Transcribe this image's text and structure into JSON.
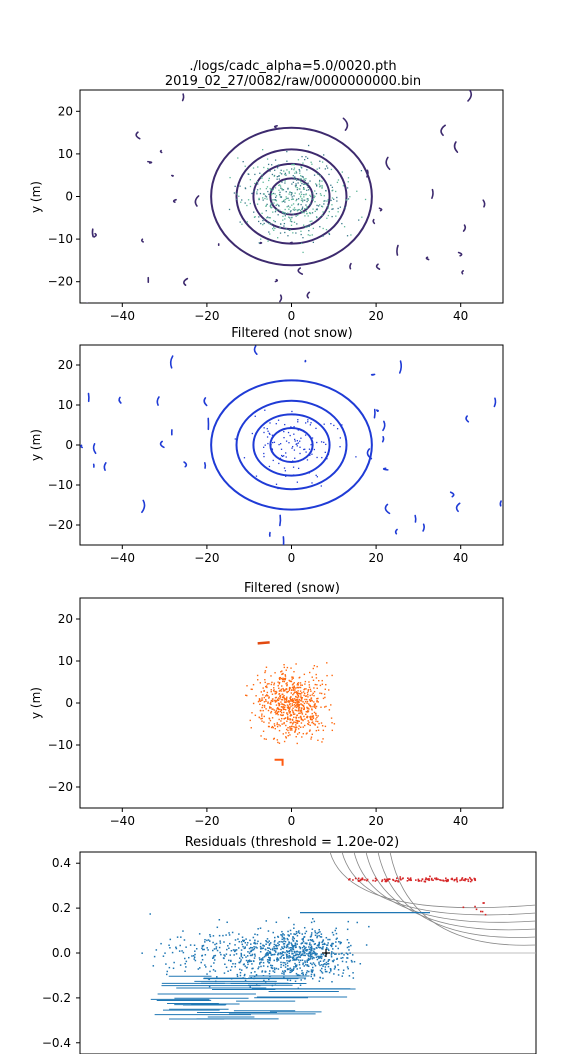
{
  "figure": {
    "title_line1": "./logs/cadc_alpha=5.0/0020.pth",
    "title_line2": "2019_02_27/0082/raw/0000000000.bin"
  },
  "chart_data": [
    {
      "type": "scatter",
      "title": "",
      "xlabel": "",
      "ylabel": "y (m)",
      "xlim": [
        -50,
        50
      ],
      "ylim": [
        -25,
        25
      ],
      "xticks": [
        "−40",
        "−20",
        "0",
        "20",
        "40"
      ],
      "yticks": [
        "20",
        "10",
        "0",
        "−10",
        "−20"
      ],
      "color_map": "viridis-like point colors",
      "rings": [
        5,
        9,
        13,
        19
      ],
      "series_color": "#3d2a6e"
    },
    {
      "type": "scatter",
      "title": "Filtered (not snow)",
      "xlabel": "",
      "ylabel": "y (m)",
      "xlim": [
        -50,
        50
      ],
      "ylim": [
        -25,
        25
      ],
      "xticks": [
        "−40",
        "−20",
        "0",
        "20",
        "40"
      ],
      "yticks": [
        "20",
        "10",
        "0",
        "−10",
        "−20"
      ],
      "rings": [
        5,
        9,
        13,
        19
      ],
      "series_color": "#1f3bd6"
    },
    {
      "type": "scatter",
      "title": "Filtered (snow)",
      "xlabel": "",
      "ylabel": "y (m)",
      "xlim": [
        -50,
        50
      ],
      "ylim": [
        -25,
        25
      ],
      "xticks": [
        "−40",
        "−20",
        "0",
        "20",
        "40"
      ],
      "yticks": [
        "20",
        "10",
        "0",
        "−10",
        "−20"
      ],
      "cluster_center": [
        0,
        0
      ],
      "cluster_radius": 15,
      "series_color": "#ff6a10"
    },
    {
      "type": "scatter",
      "title": "Residuals (threshold = 1.20e-02)",
      "xlabel": "",
      "ylabel": "",
      "ylim": [
        -0.45,
        0.45
      ],
      "yticks": [
        "0.4",
        "0.2",
        "0.0",
        "−0.2",
        "−0.4"
      ],
      "series": [
        {
          "color": "#1f77b4"
        },
        {
          "color": "#d62728"
        }
      ],
      "marker": "+"
    }
  ]
}
